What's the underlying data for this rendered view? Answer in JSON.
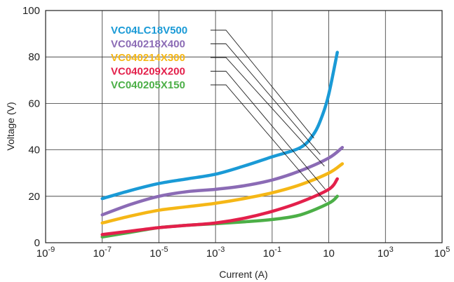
{
  "chart_data": {
    "type": "line",
    "title": "",
    "xlabel": "Current (A)",
    "ylabel": "Voltage (V)",
    "x_scale": "log",
    "xlim": [
      1e-09,
      100000
    ],
    "ylim": [
      0,
      100
    ],
    "grid": true,
    "legend_placement": "top-left, with leader lines to curves",
    "y_ticks": [
      "0",
      "20",
      "40",
      "60",
      "80",
      "100"
    ],
    "x_ticks": [
      {
        "value": 1e-09,
        "base": "10",
        "exp": "-9"
      },
      {
        "value": 1e-07,
        "base": "10",
        "exp": "-7"
      },
      {
        "value": 1e-05,
        "base": "10",
        "exp": "-5"
      },
      {
        "value": 0.001,
        "base": "10",
        "exp": "-3"
      },
      {
        "value": 0.1,
        "base": "10",
        "exp": "-1"
      },
      {
        "value": 10,
        "base": "10",
        "exp": ""
      },
      {
        "value": 1000,
        "base": "10",
        "exp": "3"
      },
      {
        "value": 100000,
        "base": "10",
        "exp": "5"
      }
    ],
    "series": [
      {
        "name": "VC04LC18V500",
        "color": "#1a9ad6",
        "points": [
          [
            1e-07,
            19
          ],
          [
            1e-06,
            22.5
          ],
          [
            1e-05,
            25.5
          ],
          [
            0.0001,
            27.5
          ],
          [
            0.001,
            29.5
          ],
          [
            0.01,
            33
          ],
          [
            0.1,
            37
          ],
          [
            1,
            41
          ],
          [
            3,
            47
          ],
          [
            6,
            55
          ],
          [
            10,
            64
          ],
          [
            20,
            82
          ]
        ]
      },
      {
        "name": "VC040218X400",
        "color": "#8b6bb5",
        "points": [
          [
            1e-07,
            12
          ],
          [
            1e-06,
            16.5
          ],
          [
            1e-05,
            20
          ],
          [
            0.0001,
            22
          ],
          [
            0.001,
            23
          ],
          [
            0.01,
            24.5
          ],
          [
            0.1,
            27
          ],
          [
            1,
            31
          ],
          [
            10,
            36.5
          ],
          [
            30,
            41
          ]
        ]
      },
      {
        "name": "VC040214X300",
        "color": "#f5b716",
        "points": [
          [
            1e-07,
            8.5
          ],
          [
            1e-06,
            11.5
          ],
          [
            1e-05,
            14
          ],
          [
            0.0001,
            15.5
          ],
          [
            0.001,
            17
          ],
          [
            0.01,
            19
          ],
          [
            0.1,
            21.5
          ],
          [
            1,
            25
          ],
          [
            10,
            30
          ],
          [
            30,
            34
          ]
        ]
      },
      {
        "name": "VC040209X200",
        "color": "#e3204b",
        "points": [
          [
            1e-07,
            3.5
          ],
          [
            1e-06,
            5
          ],
          [
            1e-05,
            6.5
          ],
          [
            0.0001,
            7.5
          ],
          [
            0.001,
            8.5
          ],
          [
            0.01,
            10.5
          ],
          [
            0.1,
            13.5
          ],
          [
            1,
            17.5
          ],
          [
            10,
            23
          ],
          [
            20,
            27.5
          ]
        ]
      },
      {
        "name": "VC040205X150",
        "color": "#4caf47",
        "points": [
          [
            1e-07,
            2.5
          ],
          [
            1e-06,
            4.5
          ],
          [
            1e-05,
            6.5
          ],
          [
            0.0001,
            7.5
          ],
          [
            0.001,
            8.2
          ],
          [
            0.01,
            9
          ],
          [
            0.1,
            10
          ],
          [
            1,
            12
          ],
          [
            10,
            17
          ],
          [
            20,
            20
          ]
        ]
      }
    ],
    "leader_targets": [
      [
        3,
        45
      ],
      [
        5,
        38
      ],
      [
        7,
        33
      ],
      [
        7.5,
        23
      ],
      [
        8,
        17.5
      ]
    ]
  }
}
